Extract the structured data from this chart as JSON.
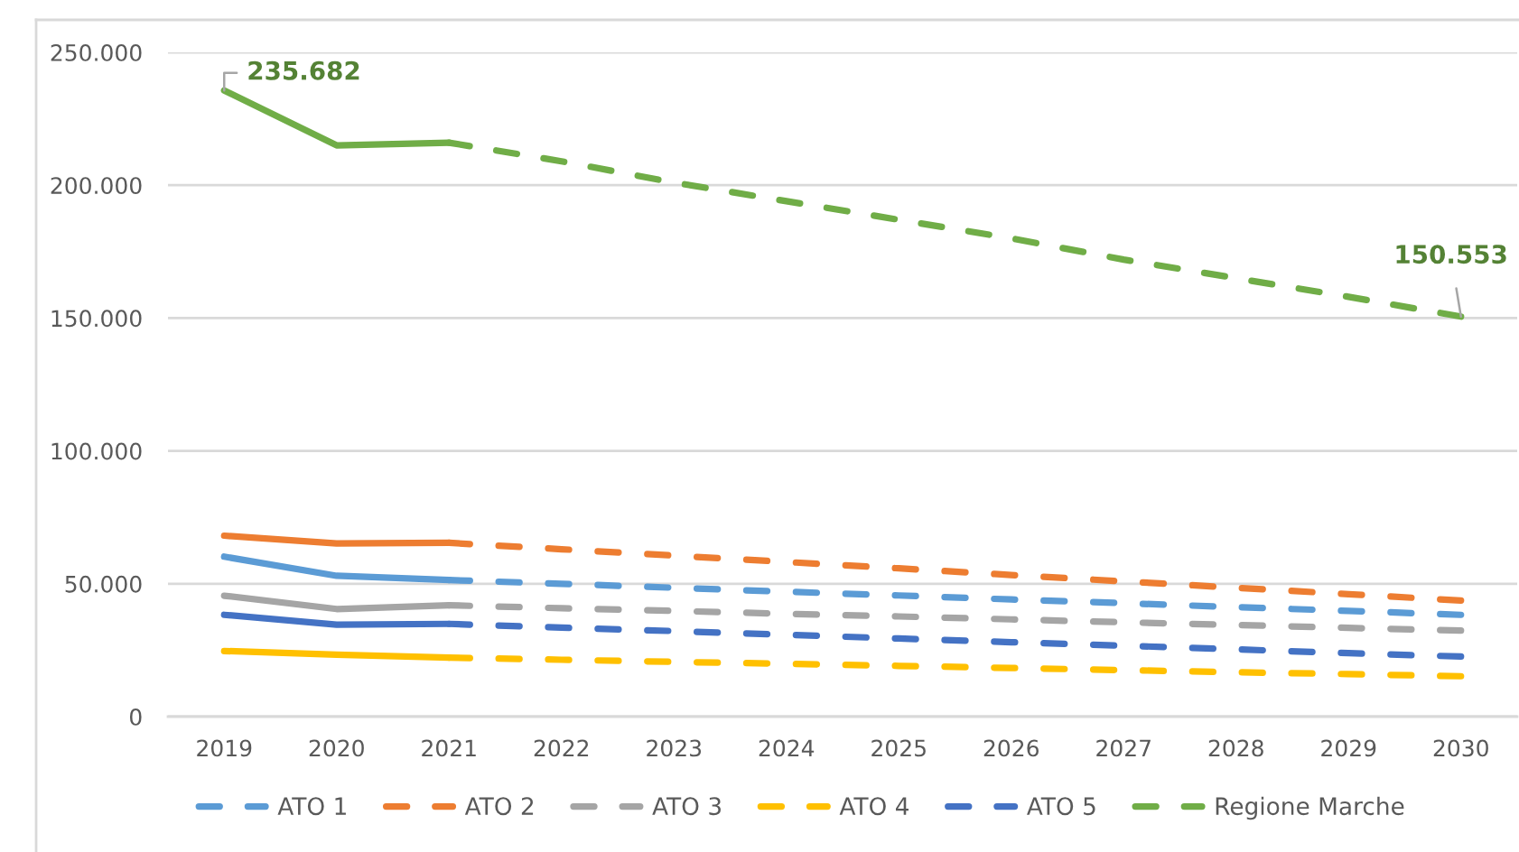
{
  "chart_data": {
    "type": "line",
    "categories": [
      "2019",
      "2020",
      "2021",
      "2022",
      "2023",
      "2024",
      "2025",
      "2026",
      "2027",
      "2028",
      "2029",
      "2030"
    ],
    "ylim": [
      0,
      250000
    ],
    "yticks": [
      0,
      {
        "value": 50000,
        "label": "50.000"
      },
      {
        "value": 100000,
        "label": "100.000"
      },
      {
        "value": 150000,
        "label": "150.000"
      },
      {
        "value": 200000,
        "label": "200.000"
      },
      {
        "value": 250000,
        "label": "250.000"
      }
    ],
    "grid": "y",
    "legend": "bottom",
    "series": [
      {
        "color": "#5b9bd5",
        "line_style": "solid",
        "values": [
          60200,
          53000,
          51400,
          null,
          null,
          null,
          null,
          null,
          null,
          null,
          null,
          null
        ]
      },
      {
        "name": "ATO 1",
        "color": "#5b9bd5",
        "line_style": "dashed",
        "values": [
          null,
          null,
          51400,
          50000,
          48500,
          47000,
          45600,
          44100,
          42700,
          41200,
          39800,
          38300
        ]
      },
      {
        "color": "#ed7d31",
        "line_style": "solid",
        "values": [
          68100,
          65200,
          65400,
          null,
          null,
          null,
          null,
          null,
          null,
          null,
          null,
          null
        ]
      },
      {
        "name": "ATO 2",
        "color": "#ed7d31",
        "line_style": "dashed",
        "values": [
          null,
          null,
          65400,
          63000,
          60600,
          58200,
          55800,
          53300,
          50900,
          48500,
          46100,
          43700
        ]
      },
      {
        "color": "#a5a5a5",
        "line_style": "solid",
        "values": [
          45500,
          40500,
          41900,
          null,
          null,
          null,
          null,
          null,
          null,
          null,
          null,
          null
        ]
      },
      {
        "name": "ATO 3",
        "color": "#a5a5a5",
        "line_style": "dashed",
        "values": [
          null,
          null,
          41900,
          40800,
          39800,
          38700,
          37700,
          36600,
          35500,
          34500,
          33400,
          32400
        ]
      },
      {
        "color": "#ffc000",
        "line_style": "solid",
        "values": [
          24700,
          23300,
          22200,
          null,
          null,
          null,
          null,
          null,
          null,
          null,
          null,
          null
        ]
      },
      {
        "name": "ATO 4",
        "color": "#ffc000",
        "line_style": "dashed",
        "values": [
          null,
          null,
          22200,
          21400,
          20600,
          19900,
          19100,
          18300,
          17500,
          16700,
          16000,
          15200
        ]
      },
      {
        "color": "#4472c4",
        "line_style": "solid",
        "values": [
          38300,
          34600,
          34900,
          null,
          null,
          null,
          null,
          null,
          null,
          null,
          null,
          null
        ]
      },
      {
        "name": "ATO 5",
        "color": "#4472c4",
        "line_style": "dashed",
        "values": [
          null,
          null,
          34900,
          33500,
          32200,
          30800,
          29400,
          28000,
          26700,
          25300,
          23900,
          22600
        ]
      },
      {
        "color": "#70ad47",
        "line_style": "solid",
        "values": [
          235682,
          215000,
          216000,
          null,
          null,
          null,
          null,
          null,
          null,
          null,
          null,
          null
        ]
      },
      {
        "name": "Regione Marche",
        "color": "#70ad47",
        "line_style": "dashed",
        "values": [
          null,
          null,
          216000,
          209000,
          201000,
          194000,
          187000,
          180000,
          172000,
          165000,
          158000,
          150553
        ]
      }
    ],
    "annotations": [
      {
        "text": "235.682",
        "x": "2019",
        "y": 235682
      },
      {
        "text": "150.553",
        "x": "2030",
        "y": 150553
      }
    ]
  }
}
